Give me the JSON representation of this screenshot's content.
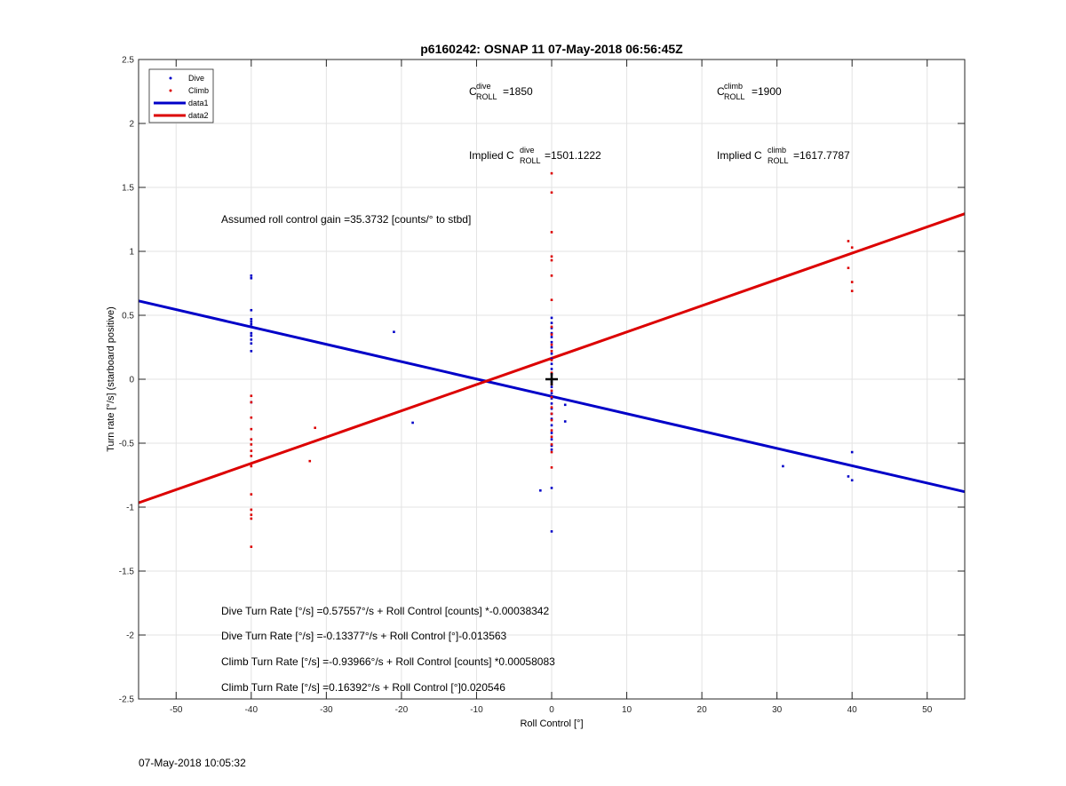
{
  "chart_data": {
    "type": "scatter",
    "title": "p6160242: OSNAP 11 07-May-2018 06:56:45Z",
    "xlabel": "Roll Control [°]",
    "ylabel": "Turn rate [°/s] (starboard positive)",
    "xlim": [
      -55,
      55
    ],
    "ylim": [
      -2.5,
      2.5
    ],
    "xticks": [
      -50,
      -40,
      -30,
      -20,
      -10,
      0,
      10,
      20,
      30,
      40,
      50
    ],
    "yticks": [
      -2.5,
      -2,
      -1.5,
      -1,
      -0.5,
      0,
      0.5,
      1,
      1.5,
      2,
      2.5
    ],
    "grid": true,
    "legend_position": "top-left",
    "colors": {
      "dive": "#0000c8",
      "climb": "#dc0000",
      "marker": "#000000"
    },
    "series": [
      {
        "name": "Dive",
        "kind": "points",
        "points": [
          [
            -40,
            0.81
          ],
          [
            -40,
            0.79
          ],
          [
            -40,
            0.54
          ],
          [
            -40,
            0.47
          ],
          [
            -40,
            0.45
          ],
          [
            -40,
            0.43
          ],
          [
            -40,
            0.41
          ],
          [
            -40,
            0.36
          ],
          [
            -40,
            0.34
          ],
          [
            -40,
            0.31
          ],
          [
            -40,
            0.28
          ],
          [
            -40,
            0.22
          ],
          [
            -40,
            -0.18
          ],
          [
            -21,
            0.37
          ],
          [
            -18.5,
            -0.34
          ],
          [
            0,
            0.48
          ],
          [
            0,
            0.44
          ],
          [
            0,
            0.4
          ],
          [
            0,
            0.36
          ],
          [
            0,
            0.33
          ],
          [
            0,
            0.29
          ],
          [
            0,
            0.25
          ],
          [
            0,
            0.2
          ],
          [
            0,
            0.16
          ],
          [
            0,
            0.12
          ],
          [
            0,
            0.08
          ],
          [
            0,
            0.04
          ],
          [
            0,
            -0.02
          ],
          [
            0,
            -0.06
          ],
          [
            0,
            -0.11
          ],
          [
            0,
            -0.15
          ],
          [
            0,
            -0.19
          ],
          [
            0,
            -0.23
          ],
          [
            0,
            -0.27
          ],
          [
            0,
            -0.31
          ],
          [
            0,
            -0.36
          ],
          [
            0,
            -0.42
          ],
          [
            0,
            -0.47
          ],
          [
            0,
            -0.52
          ],
          [
            0,
            -0.55
          ],
          [
            0,
            -0.85
          ],
          [
            0,
            -1.19
          ],
          [
            1.8,
            -0.2
          ],
          [
            1.8,
            -0.33
          ],
          [
            -1.5,
            -0.87
          ],
          [
            30.8,
            -0.68
          ],
          [
            39.5,
            -0.76
          ],
          [
            40,
            -0.79
          ],
          [
            40,
            -0.57
          ]
        ]
      },
      {
        "name": "Climb",
        "kind": "points",
        "points": [
          [
            -40,
            -0.13
          ],
          [
            -40,
            -0.18
          ],
          [
            -40,
            -0.3
          ],
          [
            -40,
            -0.39
          ],
          [
            -40,
            -0.47
          ],
          [
            -40,
            -0.51
          ],
          [
            -40,
            -0.56
          ],
          [
            -40,
            -0.6
          ],
          [
            -40,
            -0.66
          ],
          [
            -40,
            -0.68
          ],
          [
            -40,
            -0.9
          ],
          [
            -40,
            -1.02
          ],
          [
            -40,
            -1.06
          ],
          [
            -40,
            -1.09
          ],
          [
            -40,
            -1.31
          ],
          [
            -31.5,
            -0.38
          ],
          [
            -32.2,
            -0.64
          ],
          [
            0,
            1.61
          ],
          [
            0,
            1.46
          ],
          [
            0,
            1.15
          ],
          [
            0,
            0.96
          ],
          [
            0,
            0.93
          ],
          [
            0,
            0.81
          ],
          [
            0,
            0.62
          ],
          [
            0,
            0.41
          ],
          [
            0,
            0.35
          ],
          [
            0,
            0.27
          ],
          [
            0,
            0.22
          ],
          [
            0,
            0.15
          ],
          [
            0,
            0.05
          ],
          [
            0,
            -0.04
          ],
          [
            0,
            -0.09
          ],
          [
            0,
            -0.14
          ],
          [
            0,
            -0.22
          ],
          [
            0,
            -0.27
          ],
          [
            0,
            -0.32
          ],
          [
            0,
            -0.4
          ],
          [
            0,
            -0.45
          ],
          [
            0,
            -0.51
          ],
          [
            0,
            -0.57
          ],
          [
            0,
            -0.69
          ],
          [
            39.5,
            1.08
          ],
          [
            40,
            1.03
          ],
          [
            39.5,
            0.87
          ],
          [
            40,
            0.76
          ],
          [
            40,
            0.69
          ]
        ]
      },
      {
        "name": "data1",
        "kind": "line",
        "intercept": -0.13377,
        "slope": -0.013563
      },
      {
        "name": "data2",
        "kind": "line",
        "intercept": 0.16392,
        "slope": 0.020546
      }
    ],
    "center_marker": [
      0,
      0
    ],
    "annotations": {
      "c_roll_dive": {
        "base": "C",
        "sup": "dive",
        "sub": "ROLL",
        "value": "=1850"
      },
      "c_roll_climb": {
        "base": "C",
        "sup": "climb",
        "sub": "ROLL",
        "value": "=1900"
      },
      "implied_dive": {
        "prefix": "Implied C",
        "sup": "dive",
        "sub": "ROLL",
        "value": "=1501.1222"
      },
      "implied_climb": {
        "prefix": "Implied C",
        "sup": "climb",
        "sub": "ROLL",
        "value": "=1617.7787"
      },
      "gain": "Assumed roll control gain =35.3732 [counts/° to stbd]",
      "equations": [
        "Dive Turn Rate [°/s] =0.57557°/s + Roll Control [counts] *-0.00038342",
        "Dive Turn Rate [°/s] =-0.13377°/s + Roll Control [°]-0.013563",
        "Climb Turn Rate [°/s] =-0.93966°/s + Roll Control [counts] *0.00058083",
        "Climb Turn Rate [°/s] =0.16392°/s + Roll Control [°]0.020546"
      ]
    }
  },
  "footer": {
    "timestamp": "07-May-2018 10:05:32"
  }
}
